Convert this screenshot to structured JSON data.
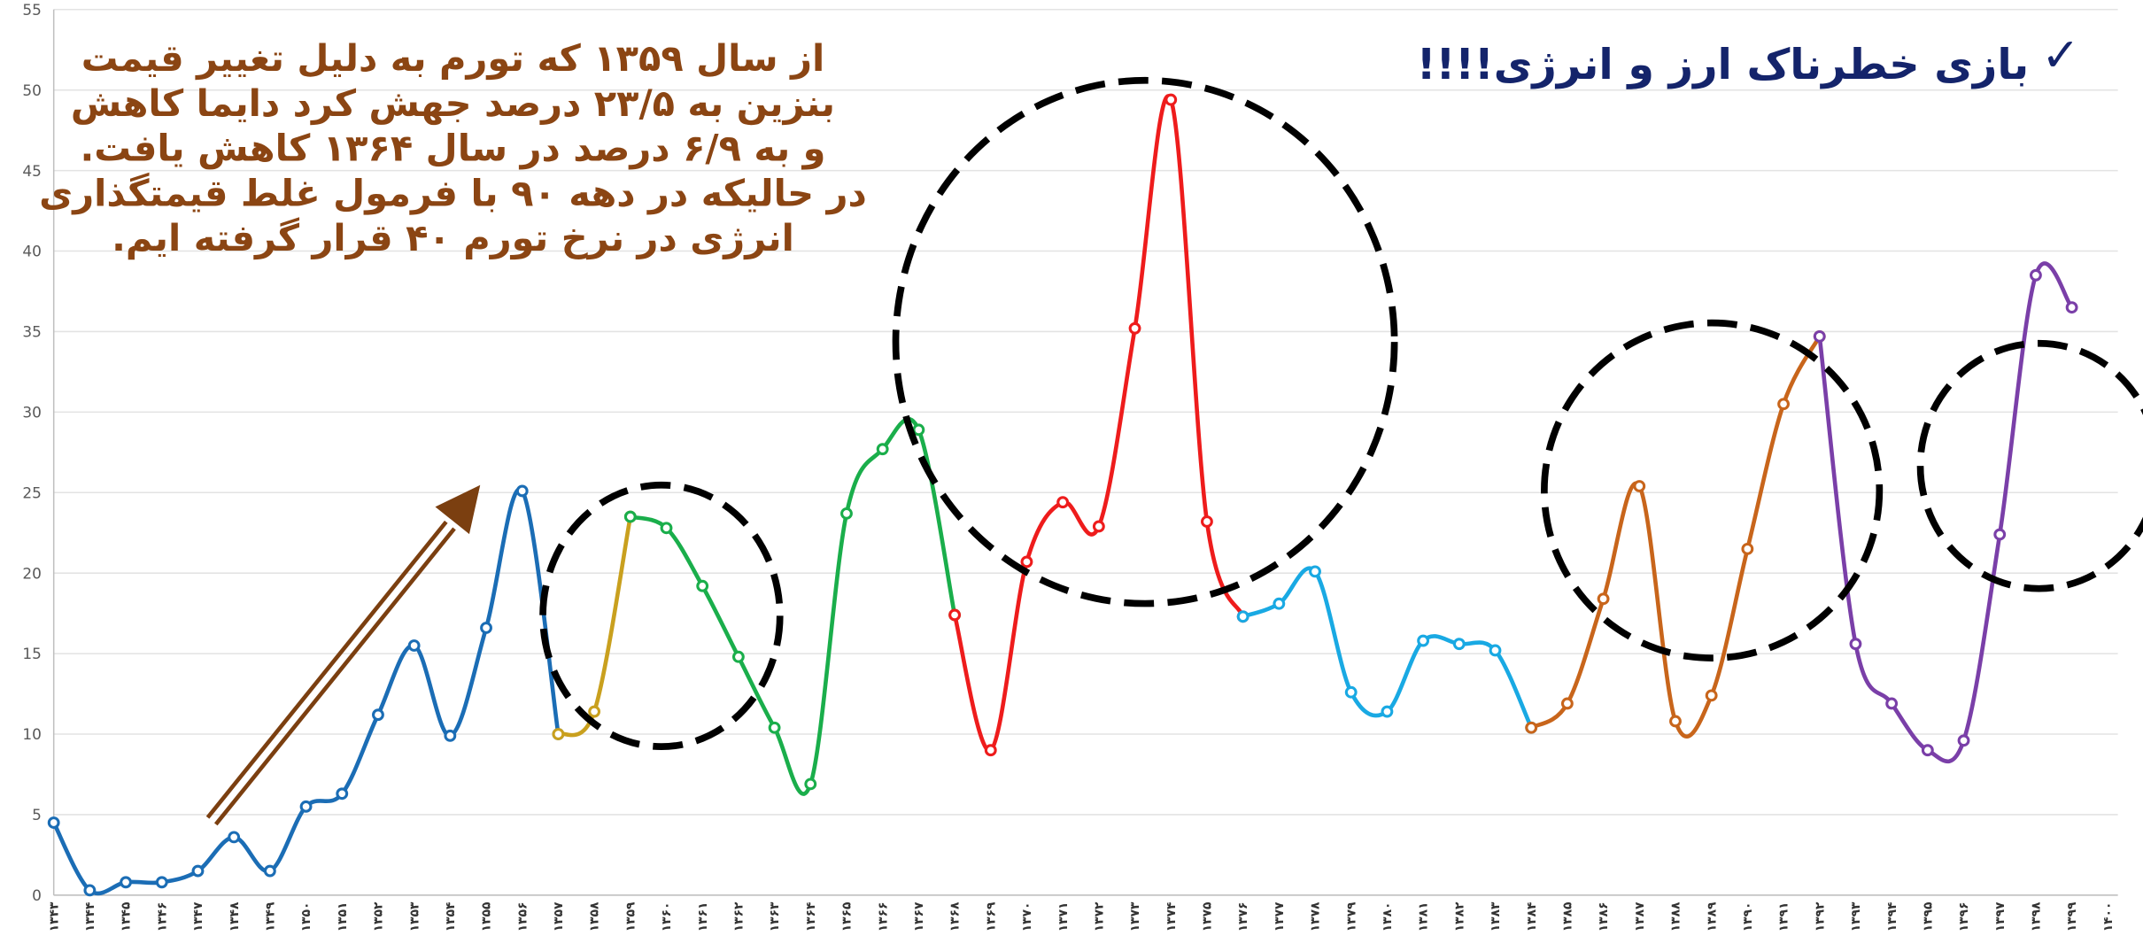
{
  "title": "بازی خطرناک ارز و انرژی!!!!",
  "annotation": [
    "از سال ۱۳۵۹ که تورم به دلیل تغییر قیمت",
    "بنزین به ۲۳/۵ درصد جهش کرد دایما کاهش",
    "و به ۶/۹ درصد در سال ۱۳۶۴ کاهش یافت.",
    "در حالیکه در دهه ۹۰ با فرمول غلط قیمتگذاری",
    "انرژی در نرخ تورم ۴۰ قرار گرفته ایم."
  ],
  "chart_data": {
    "type": "line",
    "categories": [
      "۱۳۴۳",
      "۱۳۴۴",
      "۱۳۴۵",
      "۱۳۴۶",
      "۱۳۴۷",
      "۱۳۴۸",
      "۱۳۴۹",
      "۱۳۵۰",
      "۱۳۵۱",
      "۱۳۵۲",
      "۱۳۵۳",
      "۱۳۵۴",
      "۱۳۵۵",
      "۱۳۵۶",
      "۱۳۵۷",
      "۱۳۵۸",
      "۱۳۵۹",
      "۱۳۶۰",
      "۱۳۶۱",
      "۱۳۶۲",
      "۱۳۶۳",
      "۱۳۶۴",
      "۱۳۶۵",
      "۱۳۶۶",
      "۱۳۶۷",
      "۱۳۶۸",
      "۱۳۶۹",
      "۱۳۷۰",
      "۱۳۷۱",
      "۱۳۷۲",
      "۱۳۷۳",
      "۱۳۷۴",
      "۱۳۷۵",
      "۱۳۷۶",
      "۱۳۷۷",
      "۱۳۷۸",
      "۱۳۷۹",
      "۱۳۸۰",
      "۱۳۸۱",
      "۱۳۸۲",
      "۱۳۸۳",
      "۱۳۸۴",
      "۱۳۸۵",
      "۱۳۸۶",
      "۱۳۸۷",
      "۱۳۸۸",
      "۱۳۸۹",
      "۱۳۹۰",
      "۱۳۹۱",
      "۱۳۹۲",
      "۱۳۹۳",
      "۱۳۹۴",
      "۱۳۹۵",
      "۱۳۹۶",
      "۱۳۹۷",
      "۱۳۹۸",
      "۱۳۹۹",
      "۱۴۰۰"
    ],
    "series": [
      {
        "color": "#1b6db5",
        "values": [
          4.5,
          0.3,
          0.8,
          0.8,
          1.5,
          3.6,
          1.5,
          5.5,
          6.3,
          11.2,
          15.5,
          9.9,
          16.6,
          25.1,
          10,
          null,
          null,
          null,
          null,
          null,
          null,
          null,
          null,
          null,
          null,
          null,
          null,
          null,
          null,
          null,
          null,
          null,
          null,
          null,
          null,
          null,
          null,
          null,
          null,
          null,
          null,
          null,
          null,
          null,
          null,
          null,
          null,
          null,
          null,
          null,
          null,
          null,
          null,
          null,
          null,
          null,
          null,
          null
        ]
      },
      {
        "color": "#c9a01e",
        "values": [
          null,
          null,
          null,
          null,
          null,
          null,
          null,
          null,
          null,
          null,
          null,
          null,
          null,
          null,
          10,
          11.4,
          23.5,
          null,
          null,
          null,
          null,
          null,
          null,
          null,
          null,
          null,
          null,
          null,
          null,
          null,
          null,
          null,
          null,
          null,
          null,
          null,
          null,
          null,
          null,
          null,
          null,
          null,
          null,
          null,
          null,
          null,
          null,
          null,
          null,
          null,
          null,
          null,
          null,
          null,
          null,
          null,
          null,
          null
        ]
      },
      {
        "color": "#1aae4b",
        "values": [
          null,
          null,
          null,
          null,
          null,
          null,
          null,
          null,
          null,
          null,
          null,
          null,
          null,
          null,
          null,
          null,
          23.5,
          22.8,
          19.2,
          14.8,
          10.4,
          6.9,
          23.7,
          27.7,
          28.9,
          17.4,
          null,
          null,
          null,
          null,
          null,
          null,
          null,
          null,
          null,
          null,
          null,
          null,
          null,
          null,
          null,
          null,
          null,
          null,
          null,
          null,
          null,
          null,
          null,
          null,
          null,
          null,
          null,
          null,
          null,
          null,
          null,
          null
        ]
      },
      {
        "color": "#ee1c1c",
        "values": [
          null,
          null,
          null,
          null,
          null,
          null,
          null,
          null,
          null,
          null,
          null,
          null,
          null,
          null,
          null,
          null,
          null,
          null,
          null,
          null,
          null,
          null,
          null,
          null,
          null,
          17.4,
          9,
          20.7,
          24.4,
          22.9,
          35.2,
          49.4,
          23.2,
          17.3,
          null,
          null,
          null,
          null,
          null,
          null,
          null,
          null,
          null,
          null,
          null,
          null,
          null,
          null,
          null,
          null,
          null,
          null,
          null,
          null,
          null,
          null,
          null,
          null
        ]
      },
      {
        "color": "#19a9e3",
        "values": [
          null,
          null,
          null,
          null,
          null,
          null,
          null,
          null,
          null,
          null,
          null,
          null,
          null,
          null,
          null,
          null,
          null,
          null,
          null,
          null,
          null,
          null,
          null,
          null,
          null,
          null,
          null,
          null,
          null,
          null,
          null,
          null,
          null,
          17.3,
          18.1,
          20.1,
          12.6,
          11.4,
          15.8,
          15.6,
          15.2,
          10.4,
          null,
          null,
          null,
          null,
          null,
          null,
          null,
          null,
          null,
          null,
          null,
          null,
          null,
          null,
          null,
          null
        ]
      },
      {
        "color": "#c8651b",
        "values": [
          null,
          null,
          null,
          null,
          null,
          null,
          null,
          null,
          null,
          null,
          null,
          null,
          null,
          null,
          null,
          null,
          null,
          null,
          null,
          null,
          null,
          null,
          null,
          null,
          null,
          null,
          null,
          null,
          null,
          null,
          null,
          null,
          null,
          null,
          null,
          null,
          null,
          null,
          null,
          null,
          null,
          10.4,
          11.9,
          18.4,
          25.4,
          10.8,
          12.4,
          21.5,
          30.5,
          34.7,
          null,
          null,
          null,
          null,
          null,
          null,
          null,
          null
        ]
      },
      {
        "color": "#7a3fa8",
        "values": [
          null,
          null,
          null,
          null,
          null,
          null,
          null,
          null,
          null,
          null,
          null,
          null,
          null,
          null,
          null,
          null,
          null,
          null,
          null,
          null,
          null,
          null,
          null,
          null,
          null,
          null,
          null,
          null,
          null,
          null,
          null,
          null,
          null,
          null,
          null,
          null,
          null,
          null,
          null,
          null,
          null,
          null,
          null,
          null,
          null,
          null,
          null,
          null,
          null,
          34.7,
          15.6,
          11.9,
          9,
          9.6,
          22.4,
          38.5,
          36.5,
          null
        ]
      }
    ],
    "ylim": [
      0,
      55
    ],
    "yticks": [
      0,
      5,
      10,
      15,
      20,
      25,
      30,
      35,
      40,
      45,
      50,
      55
    ],
    "grid": true
  }
}
